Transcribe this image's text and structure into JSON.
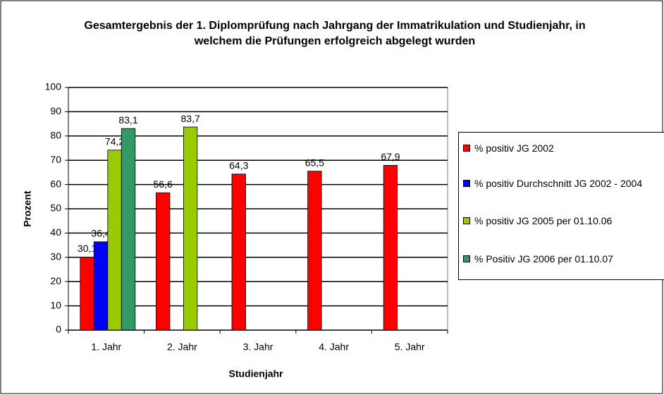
{
  "chart_data": {
    "type": "bar",
    "title": "Gesamtergebnis der 1. Diplomprüfung nach Jahrgang der Immatrikulation und Studienjahr, in welchem die Prüfungen erfolgreich abgelegt wurden",
    "x_label": "Studienjahr",
    "y_label": "Prozent",
    "categories": [
      "1. Jahr",
      "2. Jahr",
      "3. Jahr",
      "4. Jahr",
      "5. Jahr"
    ],
    "series": [
      {
        "name": "% positiv JG 2002",
        "color": "#ff0000",
        "values": [
          30.1,
          56.6,
          64.3,
          65.5,
          67.9
        ],
        "value_labels": [
          "30,1",
          "56,6",
          "64,3",
          "65,5",
          "67,9"
        ]
      },
      {
        "name": "% positiv Durchschnitt JG 2002 - 2004",
        "color": "#0000ff",
        "values": [
          36.4,
          null,
          null,
          null,
          null
        ],
        "value_labels": [
          "36,4",
          null,
          null,
          null,
          null
        ]
      },
      {
        "name": "% positiv JG 2005 per 01.10.06",
        "color": "#99cc00",
        "values": [
          74.2,
          83.7,
          null,
          null,
          null
        ],
        "value_labels": [
          "74,2",
          "83,7",
          null,
          null,
          null
        ]
      },
      {
        "name": "% Positiv JG 2006 per 01.10.07",
        "color": "#339966",
        "values": [
          83.1,
          null,
          null,
          null,
          null
        ],
        "value_labels": [
          "83,1",
          null,
          null,
          null,
          null
        ]
      }
    ],
    "ylim": [
      0,
      100
    ],
    "yticks": [
      0,
      10,
      20,
      30,
      40,
      50,
      60,
      70,
      80,
      90,
      100
    ],
    "grid": true,
    "legend": "right"
  }
}
